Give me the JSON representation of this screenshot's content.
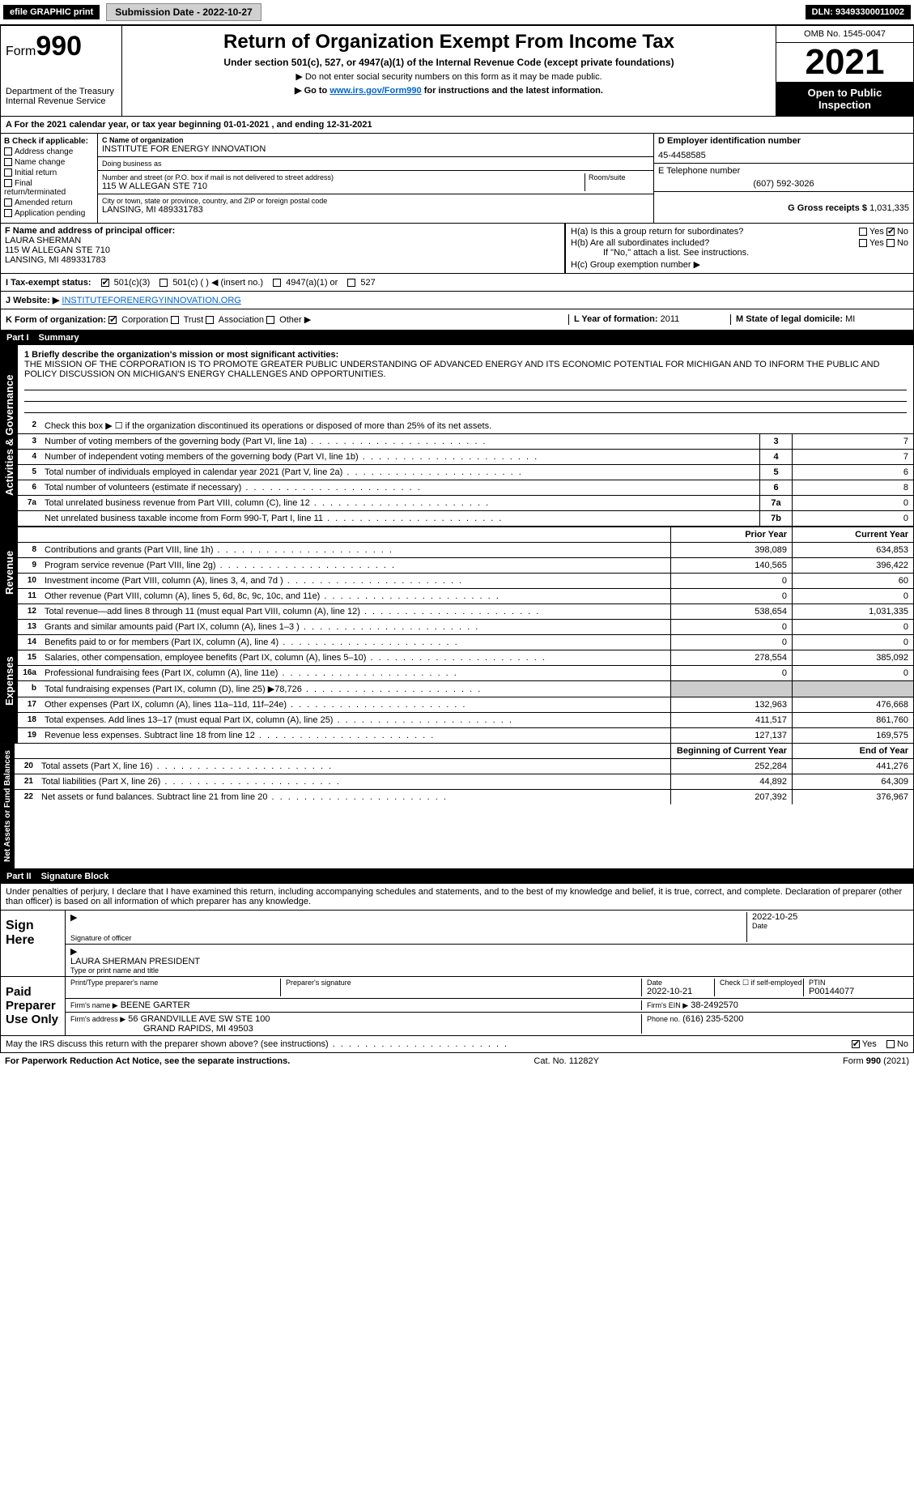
{
  "topbar": {
    "efile": "efile GRAPHIC print",
    "submission": "Submission Date - 2022-10-27",
    "dln": "DLN: 93493300011002"
  },
  "header": {
    "form_prefix": "Form",
    "form_num": "990",
    "dept": "Department of the Treasury",
    "irs": "Internal Revenue Service",
    "title": "Return of Organization Exempt From Income Tax",
    "subtitle": "Under section 501(c), 527, or 4947(a)(1) of the Internal Revenue Code (except private foundations)",
    "note1": "▶ Do not enter social security numbers on this form as it may be made public.",
    "note2_pre": "▶ Go to ",
    "note2_link": "www.irs.gov/Form990",
    "note2_post": " for instructions and the latest information.",
    "omb": "OMB No. 1545-0047",
    "year": "2021",
    "inspect": "Open to Public Inspection"
  },
  "section_a": "A For the 2021 calendar year, or tax year beginning 01-01-2021     , and ending 12-31-2021",
  "block_b": {
    "title": "B Check if applicable:",
    "items": [
      "Address change",
      "Name change",
      "Initial return",
      "Final return/terminated",
      "Amended return",
      "Application pending"
    ]
  },
  "block_c": {
    "name_label": "C Name of organization",
    "name": "INSTITUTE FOR ENERGY INNOVATION",
    "dba_label": "Doing business as",
    "dba": "",
    "addr_label": "Number and street (or P.O. box if mail is not delivered to street address)",
    "room_label": "Room/suite",
    "addr": "115 W ALLEGAN STE 710",
    "city_label": "City or town, state or province, country, and ZIP or foreign postal code",
    "city": "LANSING, MI  489331783"
  },
  "block_d": {
    "label": "D Employer identification number",
    "value": "45-4458585"
  },
  "block_e": {
    "label": "E Telephone number",
    "value": "(607) 592-3026"
  },
  "block_g": {
    "label": "G Gross receipts $",
    "value": "1,031,335"
  },
  "block_f": {
    "label": "F Name and address of principal officer:",
    "name": "LAURA SHERMAN",
    "addr1": "115 W ALLEGAN STE 710",
    "addr2": "LANSING, MI  489331783"
  },
  "block_h": {
    "a_label": "H(a)  Is this a group return for subordinates?",
    "yes": "Yes",
    "no": "No",
    "b_label": "H(b)  Are all subordinates included?",
    "b_note": "If \"No,\" attach a list. See instructions.",
    "c_label": "H(c)  Group exemption number ▶"
  },
  "block_i": {
    "label": "I   Tax-exempt status:",
    "opt1": "501(c)(3)",
    "opt2": "501(c) (   ) ◀ (insert no.)",
    "opt3": "4947(a)(1) or",
    "opt4": "527"
  },
  "block_j": {
    "label": "J   Website: ▶",
    "value": "INSTITUTEFORENERGYINNOVATION.ORG"
  },
  "block_k": {
    "label": "K Form of organization:",
    "opts": [
      "Corporation",
      "Trust",
      "Association",
      "Other ▶"
    ]
  },
  "block_l": {
    "label": "L Year of formation:",
    "value": "2011"
  },
  "block_m": {
    "label": "M State of legal domicile:",
    "value": "MI"
  },
  "part1": {
    "header_num": "Part I",
    "header_title": "Summary",
    "line1_label": "1  Briefly describe the organization's mission or most significant activities:",
    "mission": "THE MISSION OF THE CORPORATION IS TO PROMOTE GREATER PUBLIC UNDERSTANDING OF ADVANCED ENERGY AND ITS ECONOMIC POTENTIAL FOR MICHIGAN AND TO INFORM THE PUBLIC AND POLICY DISCUSSION ON MICHIGAN'S ENERGY CHALLENGES AND OPPORTUNITIES.",
    "line2": "Check this box ▶ ☐  if the organization discontinued its operations or disposed of more than 25% of its net assets.",
    "governance_tab": "Activities & Governance",
    "revenue_tab": "Revenue",
    "expenses_tab": "Expenses",
    "netassets_tab": "Net Assets or Fund Balances",
    "rows_gov": [
      {
        "n": "3",
        "d": "Number of voting members of the governing body (Part VI, line 1a)",
        "box": "3",
        "v": "7"
      },
      {
        "n": "4",
        "d": "Number of independent voting members of the governing body (Part VI, line 1b)",
        "box": "4",
        "v": "7"
      },
      {
        "n": "5",
        "d": "Total number of individuals employed in calendar year 2021 (Part V, line 2a)",
        "box": "5",
        "v": "6"
      },
      {
        "n": "6",
        "d": "Total number of volunteers (estimate if necessary)",
        "box": "6",
        "v": "8"
      },
      {
        "n": "7a",
        "d": "Total unrelated business revenue from Part VIII, column (C), line 12",
        "box": "7a",
        "v": "0"
      },
      {
        "n": "",
        "d": "Net unrelated business taxable income from Form 990-T, Part I, line 11",
        "box": "7b",
        "v": "0"
      }
    ],
    "col_prior": "Prior Year",
    "col_current": "Current Year",
    "rows_rev": [
      {
        "n": "8",
        "d": "Contributions and grants (Part VIII, line 1h)",
        "p": "398,089",
        "c": "634,853"
      },
      {
        "n": "9",
        "d": "Program service revenue (Part VIII, line 2g)",
        "p": "140,565",
        "c": "396,422"
      },
      {
        "n": "10",
        "d": "Investment income (Part VIII, column (A), lines 3, 4, and 7d )",
        "p": "0",
        "c": "60"
      },
      {
        "n": "11",
        "d": "Other revenue (Part VIII, column (A), lines 5, 6d, 8c, 9c, 10c, and 11e)",
        "p": "0",
        "c": "0"
      },
      {
        "n": "12",
        "d": "Total revenue—add lines 8 through 11 (must equal Part VIII, column (A), line 12)",
        "p": "538,654",
        "c": "1,031,335"
      }
    ],
    "rows_exp": [
      {
        "n": "13",
        "d": "Grants and similar amounts paid (Part IX, column (A), lines 1–3 )",
        "p": "0",
        "c": "0"
      },
      {
        "n": "14",
        "d": "Benefits paid to or for members (Part IX, column (A), line 4)",
        "p": "0",
        "c": "0"
      },
      {
        "n": "15",
        "d": "Salaries, other compensation, employee benefits (Part IX, column (A), lines 5–10)",
        "p": "278,554",
        "c": "385,092"
      },
      {
        "n": "16a",
        "d": "Professional fundraising fees (Part IX, column (A), line 11e)",
        "p": "0",
        "c": "0"
      },
      {
        "n": "b",
        "d": "Total fundraising expenses (Part IX, column (D), line 25) ▶78,726",
        "p": "",
        "c": "",
        "shaded": true
      },
      {
        "n": "17",
        "d": "Other expenses (Part IX, column (A), lines 11a–11d, 11f–24e)",
        "p": "132,963",
        "c": "476,668"
      },
      {
        "n": "18",
        "d": "Total expenses. Add lines 13–17 (must equal Part IX, column (A), line 25)",
        "p": "411,517",
        "c": "861,760"
      },
      {
        "n": "19",
        "d": "Revenue less expenses. Subtract line 18 from line 12",
        "p": "127,137",
        "c": "169,575"
      }
    ],
    "col_boy": "Beginning of Current Year",
    "col_eoy": "End of Year",
    "rows_net": [
      {
        "n": "20",
        "d": "Total assets (Part X, line 16)",
        "p": "252,284",
        "c": "441,276"
      },
      {
        "n": "21",
        "d": "Total liabilities (Part X, line 26)",
        "p": "44,892",
        "c": "64,309"
      },
      {
        "n": "22",
        "d": "Net assets or fund balances. Subtract line 21 from line 20",
        "p": "207,392",
        "c": "376,967"
      }
    ]
  },
  "part2": {
    "header_num": "Part II",
    "header_title": "Signature Block",
    "declaration": "Under penalties of perjury, I declare that I have examined this return, including accompanying schedules and statements, and to the best of my knowledge and belief, it is true, correct, and complete. Declaration of preparer (other than officer) is based on all information of which preparer has any knowledge.",
    "sign_here": "Sign Here",
    "sig_officer": "Signature of officer",
    "date_label": "Date",
    "sig_date": "2022-10-25",
    "officer_name": "LAURA SHERMAN  PRESIDENT",
    "type_name_label": "Type or print name and title",
    "paid_prep": "Paid Preparer Use Only",
    "prep_name_label": "Print/Type preparer's name",
    "prep_sig_label": "Preparer's signature",
    "prep_date": "2022-10-21",
    "self_emp": "Check ☐ if self-employed",
    "ptin_label": "PTIN",
    "ptin": "P00144077",
    "firm_name_label": "Firm's name    ▶",
    "firm_name": "BEENE GARTER",
    "firm_ein_label": "Firm's EIN ▶",
    "firm_ein": "38-2492570",
    "firm_addr_label": "Firm's address ▶",
    "firm_addr1": "56 GRANDVILLE AVE SW STE 100",
    "firm_addr2": "GRAND RAPIDS, MI  49503",
    "phone_label": "Phone no.",
    "phone": "(616) 235-5200",
    "discuss": "May the IRS discuss this return with the preparer shown above? (see instructions)",
    "discuss_yes": "Yes",
    "discuss_no": "No"
  },
  "footer": {
    "left": "For Paperwork Reduction Act Notice, see the separate instructions.",
    "mid": "Cat. No. 11282Y",
    "right": "Form 990 (2021)"
  }
}
